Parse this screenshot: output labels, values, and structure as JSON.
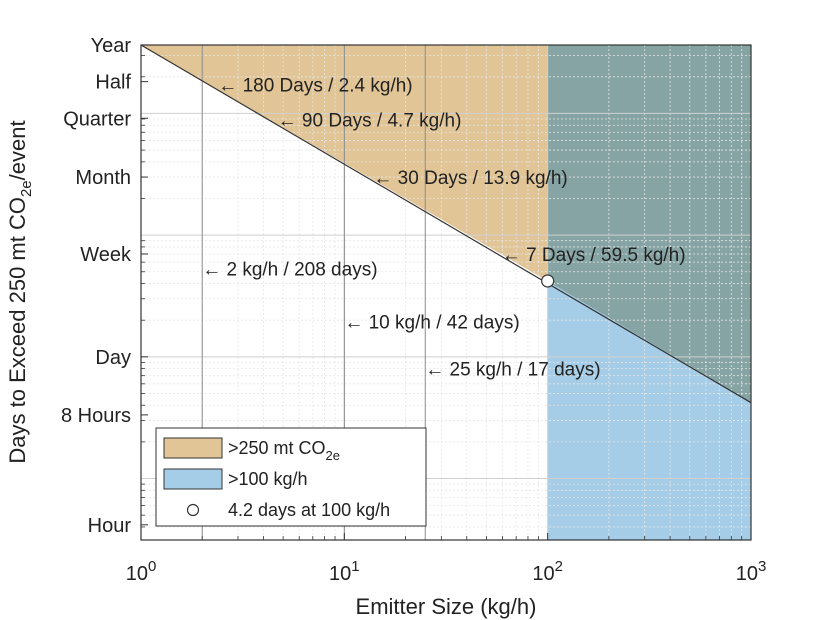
{
  "chart_data": {
    "type": "area",
    "title": "",
    "xlabel": "Emitter Size (kg/h)",
    "ylabel": {
      "main": "Days to Exceed 250 mt CO",
      "sub": "2e",
      "suffix": "/event"
    },
    "x_scale": "log",
    "y_scale": "log",
    "xlim": [
      1,
      1000
    ],
    "ylim_days": [
      0.03125,
      365
    ],
    "x_ticks": [
      {
        "value": 1,
        "base": "10",
        "exp": "0"
      },
      {
        "value": 10,
        "base": "10",
        "exp": "1"
      },
      {
        "value": 100,
        "base": "10",
        "exp": "2"
      },
      {
        "value": 1000,
        "base": "10",
        "exp": "3"
      }
    ],
    "y_ticks": [
      {
        "value": 365,
        "label": "Year"
      },
      {
        "value": 182.5,
        "label": "Half"
      },
      {
        "value": 91.25,
        "label": "Quarter"
      },
      {
        "value": 30,
        "label": "Month"
      },
      {
        "value": 7,
        "label": "Week"
      },
      {
        "value": 1,
        "label": "Day"
      },
      {
        "value": 0.3333,
        "label": "8 Hours"
      },
      {
        "value": 0.04167,
        "label": "Hour"
      }
    ],
    "grid": true,
    "threshold_line": {
      "name": "250 mt CO2e threshold",
      "points": [
        {
          "x": 1,
          "days": 417
        },
        {
          "x": 100,
          "days": 4.2
        },
        {
          "x": 1000,
          "days": 0.42
        }
      ]
    },
    "regions": [
      {
        "key": "above_250",
        "label": ">250 mt CO",
        "sub": "2e",
        "color": "#e2c596",
        "x_from": 1,
        "x_to": 100
      },
      {
        "key": "above_100",
        "label": ">100 kg/h",
        "sub": "",
        "color": "#a6cde7",
        "x_from": 100,
        "x_to": 1000
      },
      {
        "key": "overlap",
        "label": "",
        "sub": "",
        "color": "#86a4a4",
        "x_from": 100,
        "x_to": 1000
      }
    ],
    "vertical_lines": [
      2,
      10,
      25
    ],
    "annotations": [
      {
        "x": 2.4,
        "days": 173,
        "text": "← 180 Days / 2.4 kg/h)"
      },
      {
        "x": 4.7,
        "days": 89,
        "text": "← 90 Days / 4.7 kg/h)"
      },
      {
        "x": 13.9,
        "days": 30,
        "text": "← 30 Days / 13.9 kg/h)"
      },
      {
        "x": 59.5,
        "days": 7,
        "text": "← 7 Days / 59.5 kg/h)"
      },
      {
        "x": 2,
        "days": 5.3,
        "text": "← 2 kg/h / 208 days)"
      },
      {
        "x": 10,
        "days": 1.95,
        "text": "← 10 kg/h / 42 days)"
      },
      {
        "x": 25,
        "days": 0.8,
        "text": "← 25 kg/h / 17 days)"
      }
    ],
    "marker": {
      "x": 100,
      "days": 4.2,
      "label": "4.2 days at 100 kg/h"
    },
    "legend": {
      "placement": "bottom-left",
      "entries": [
        {
          "label": ">250 mt CO",
          "sub": "2e",
          "type": "patch",
          "color": "#e2c596"
        },
        {
          "label": ">100 kg/h",
          "sub": "",
          "type": "patch",
          "color": "#a6cde7"
        },
        {
          "label": "4.2 days at 100 kg/h",
          "sub": "",
          "type": "marker"
        }
      ]
    }
  }
}
